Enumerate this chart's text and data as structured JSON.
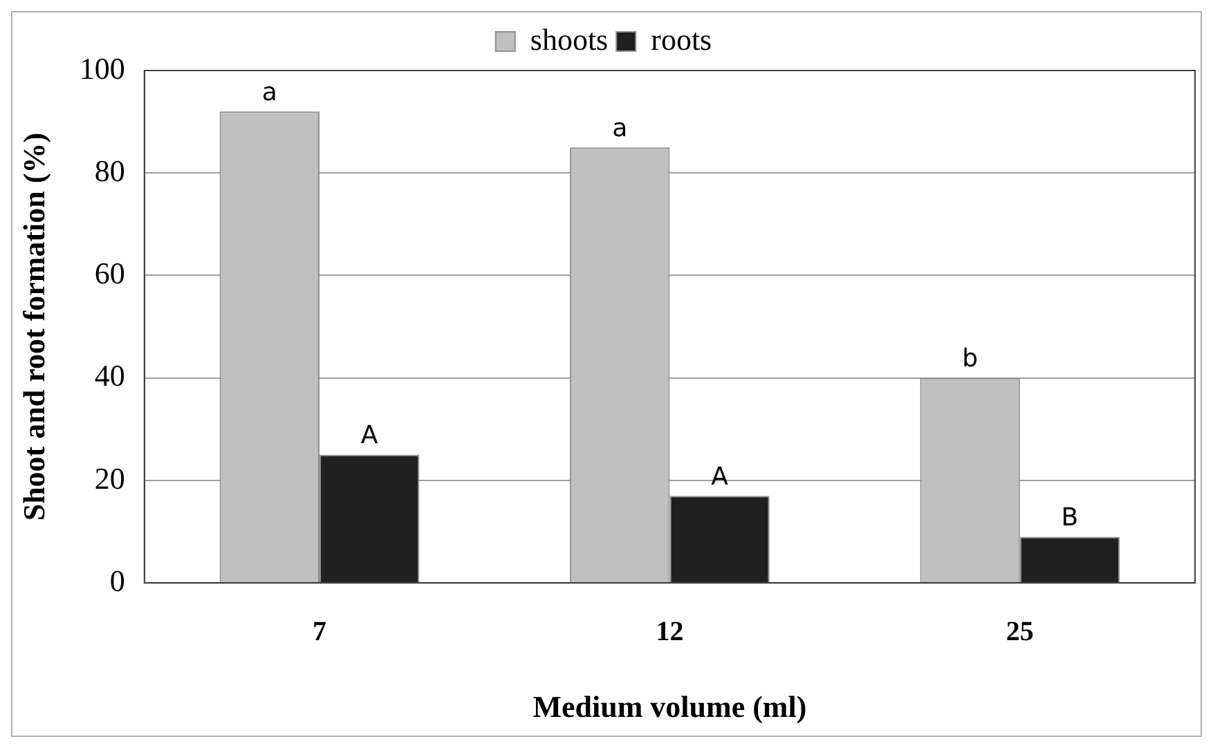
{
  "chart_data": {
    "type": "bar",
    "xlabel": "Medium volume (ml)",
    "ylabel": "Shoot and root formation (%)",
    "categories": [
      "7",
      "12",
      "25"
    ],
    "series": [
      {
        "name": "shoots",
        "color": "#c0c0c0",
        "values": [
          92,
          85,
          40
        ]
      },
      {
        "name": "roots",
        "color": "#202020",
        "values": [
          25,
          17,
          9
        ]
      }
    ],
    "ylim": [
      0,
      100
    ],
    "yticks": [
      0,
      20,
      40,
      60,
      80,
      100
    ],
    "grid": "y",
    "legend": "top",
    "annotations": [
      {
        "text": "a",
        "x": "7",
        "y": 92
      },
      {
        "text": "A",
        "x": "7",
        "y": 25
      },
      {
        "text": "a",
        "x": "12",
        "y": 85
      },
      {
        "text": "A",
        "x": "12",
        "y": 17
      },
      {
        "text": "b",
        "x": "25",
        "y": 40
      },
      {
        "text": "B",
        "x": "25",
        "y": 9
      }
    ]
  }
}
